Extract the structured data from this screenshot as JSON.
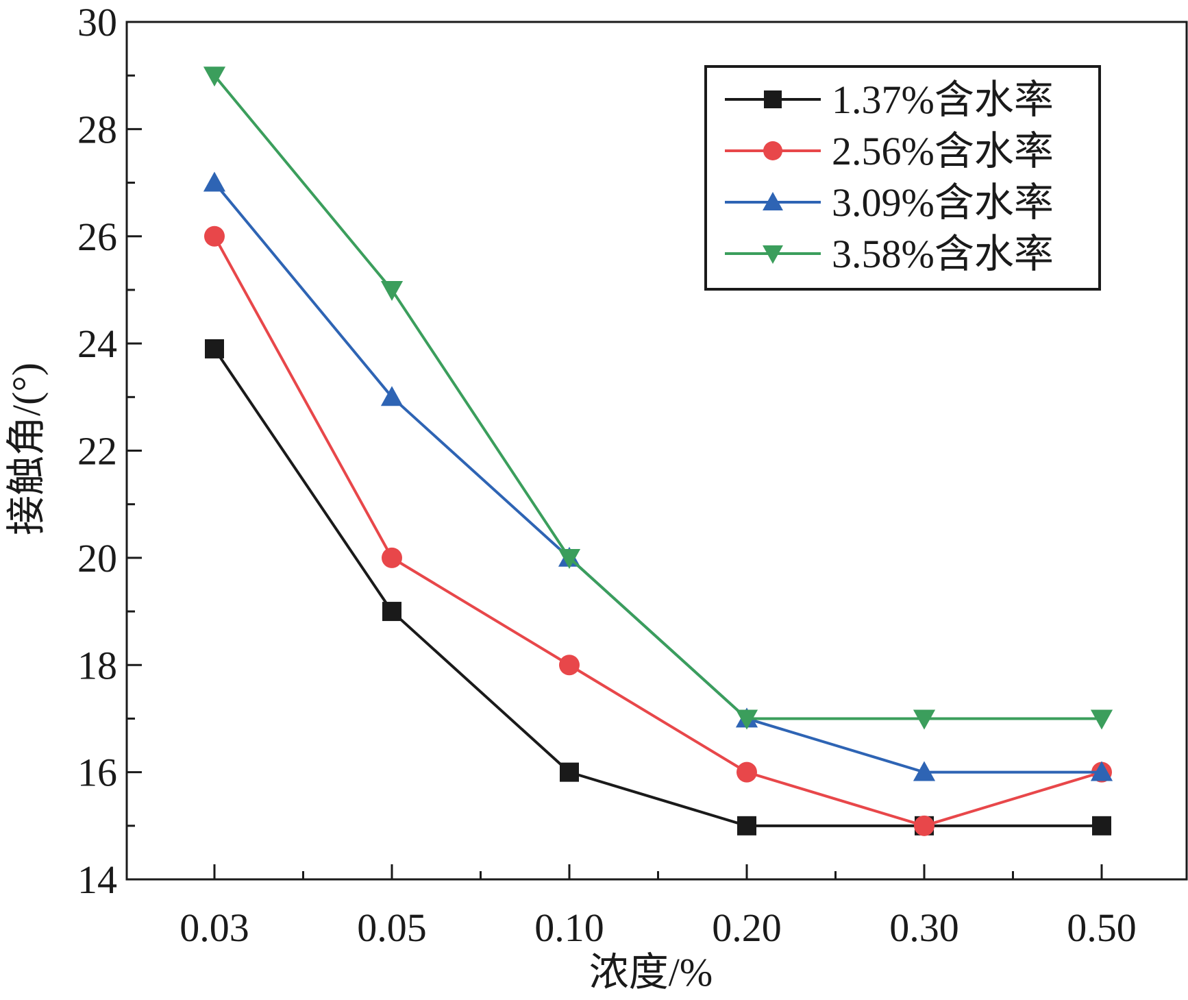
{
  "chart_data": {
    "type": "line",
    "title": "",
    "xlabel": "浓度/%",
    "ylabel": "接触角/(°)",
    "categories": [
      "0.03",
      "0.05",
      "0.10",
      "0.20",
      "0.30",
      "0.50"
    ],
    "ylim": [
      14,
      30
    ],
    "yticks": [
      14,
      16,
      18,
      20,
      22,
      24,
      26,
      28,
      30
    ],
    "grid": false,
    "legend_position": "top-right",
    "series": [
      {
        "name": "1.37%含水率",
        "color": "#1a1a1a",
        "marker": "square",
        "values": [
          23.9,
          19.0,
          16.0,
          15.0,
          15.0,
          15.0
        ]
      },
      {
        "name": "2.56%含水率",
        "color": "#e8474a",
        "marker": "circle",
        "values": [
          26.0,
          20.0,
          18.0,
          16.0,
          15.0,
          16.0
        ]
      },
      {
        "name": "3.09%含水率",
        "color": "#2e64b4",
        "marker": "triangle-up",
        "values": [
          27.0,
          23.0,
          20.0,
          17.0,
          16.0,
          16.0
        ]
      },
      {
        "name": "3.58%含水率",
        "color": "#3b9e5c",
        "marker": "triangle-down",
        "values": [
          29.0,
          25.0,
          20.0,
          17.0,
          17.0,
          17.0
        ]
      }
    ]
  }
}
